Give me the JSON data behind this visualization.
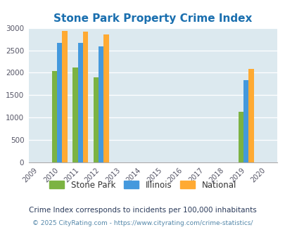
{
  "title": "Stone Park Property Crime Index",
  "title_color": "#1a6faf",
  "title_fontsize": 11,
  "years": [
    2009,
    2010,
    2011,
    2012,
    2013,
    2014,
    2015,
    2016,
    2017,
    2018,
    2019,
    2020
  ],
  "bar_years": [
    2010,
    2011,
    2012,
    2019
  ],
  "stone_park": [
    2030,
    2110,
    1900,
    1130
  ],
  "illinois": [
    2670,
    2670,
    2580,
    1840
  ],
  "national": [
    2930,
    2910,
    2860,
    2090
  ],
  "bar_width": 0.25,
  "color_stone": "#7cb342",
  "color_illinois": "#4499dd",
  "color_national": "#ffaa33",
  "ylim": [
    0,
    3000
  ],
  "yticks": [
    0,
    500,
    1000,
    1500,
    2000,
    2500,
    3000
  ],
  "bg_color": "#dce9ef",
  "grid_color": "#ffffff",
  "legend_labels": [
    "Stone Park",
    "Illinois",
    "National"
  ],
  "footnote1": "Crime Index corresponds to incidents per 100,000 inhabitants",
  "footnote2": "© 2025 CityRating.com - https://www.cityrating.com/crime-statistics/",
  "footnote_color1": "#2a3a5a",
  "footnote_color2": "#5588aa"
}
